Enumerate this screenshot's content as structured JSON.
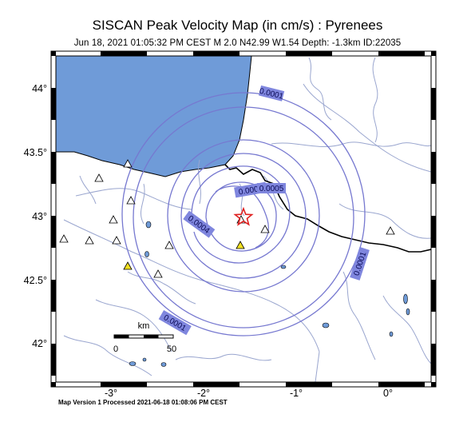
{
  "title": "SISCAN Peak Velocity Map (in cm/s) : Pyrenees",
  "subtitle": "Jun 18, 2021 01:05:32 PM CEST   M 2.0   N42.99 W1.54   Depth: -1.3km   ID:22035",
  "footer": "Map Version 1 Processed 2021-06-18 01:08:06 PM CEST",
  "map": {
    "lon_range": [
      -3.6,
      0.5
    ],
    "lat_range": [
      41.7,
      44.3
    ],
    "lon_ticks": [
      "-3°",
      "-2°",
      "-1°",
      "0°"
    ],
    "lat_ticks": [
      "42°",
      "42.5°",
      "43°",
      "43.5°",
      "44°"
    ],
    "epicenter": {
      "lat": 42.99,
      "lon": -1.54
    },
    "contour_labels": [
      "0.0001",
      "0.0002",
      "0.0005",
      "0.0004",
      "0.0001",
      "0.0001"
    ],
    "scale_bar": {
      "unit": "km",
      "labels": [
        "0",
        "50"
      ]
    },
    "colors": {
      "sea": "#6f9bd8",
      "contours": "#7678d0",
      "label_bg": "#7f86de",
      "rivers": "#9aa6cf",
      "border": "#000000",
      "epicenter_star": "#e02020",
      "station_triggered": "#f2e020"
    }
  }
}
